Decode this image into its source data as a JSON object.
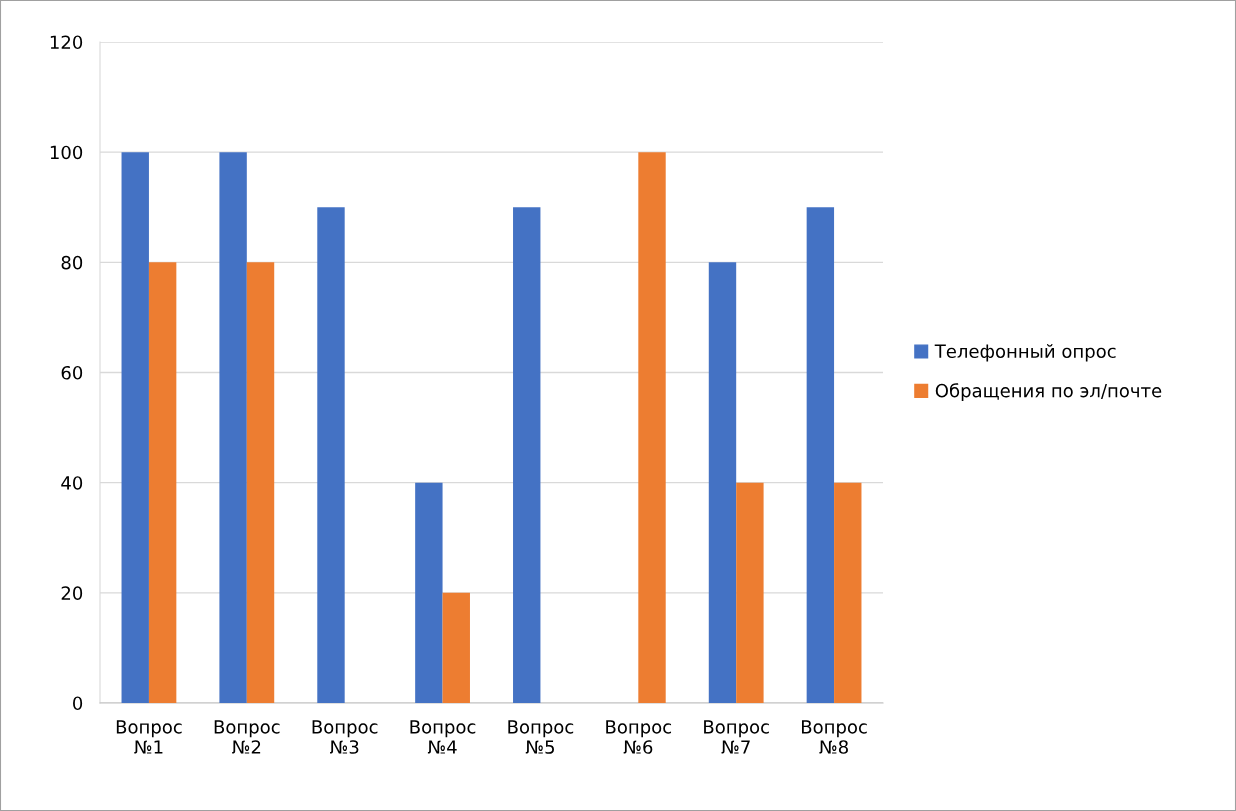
{
  "chart_data": {
    "type": "bar",
    "categories": [
      "Вопрос\n№1",
      "Вопрос\n№2",
      "Вопрос\n№3",
      "Вопрос\n№4",
      "Вопрос\n№5",
      "Вопрос\n№6",
      "Вопрос\n№7",
      "Вопрос\n№8"
    ],
    "series": [
      {
        "name": "Телефонный опрос",
        "color": "#4472c4",
        "values": [
          100,
          100,
          90,
          40,
          90,
          0,
          80,
          90
        ]
      },
      {
        "name": "Обращения по эл/почте",
        "color": "#ed7d31",
        "values": [
          80,
          80,
          0,
          20,
          0,
          100,
          40,
          40
        ]
      }
    ],
    "ylim": [
      0,
      120
    ],
    "yticks": [
      0,
      20,
      40,
      60,
      80,
      100,
      120
    ],
    "grid": "y",
    "legend": "right"
  }
}
